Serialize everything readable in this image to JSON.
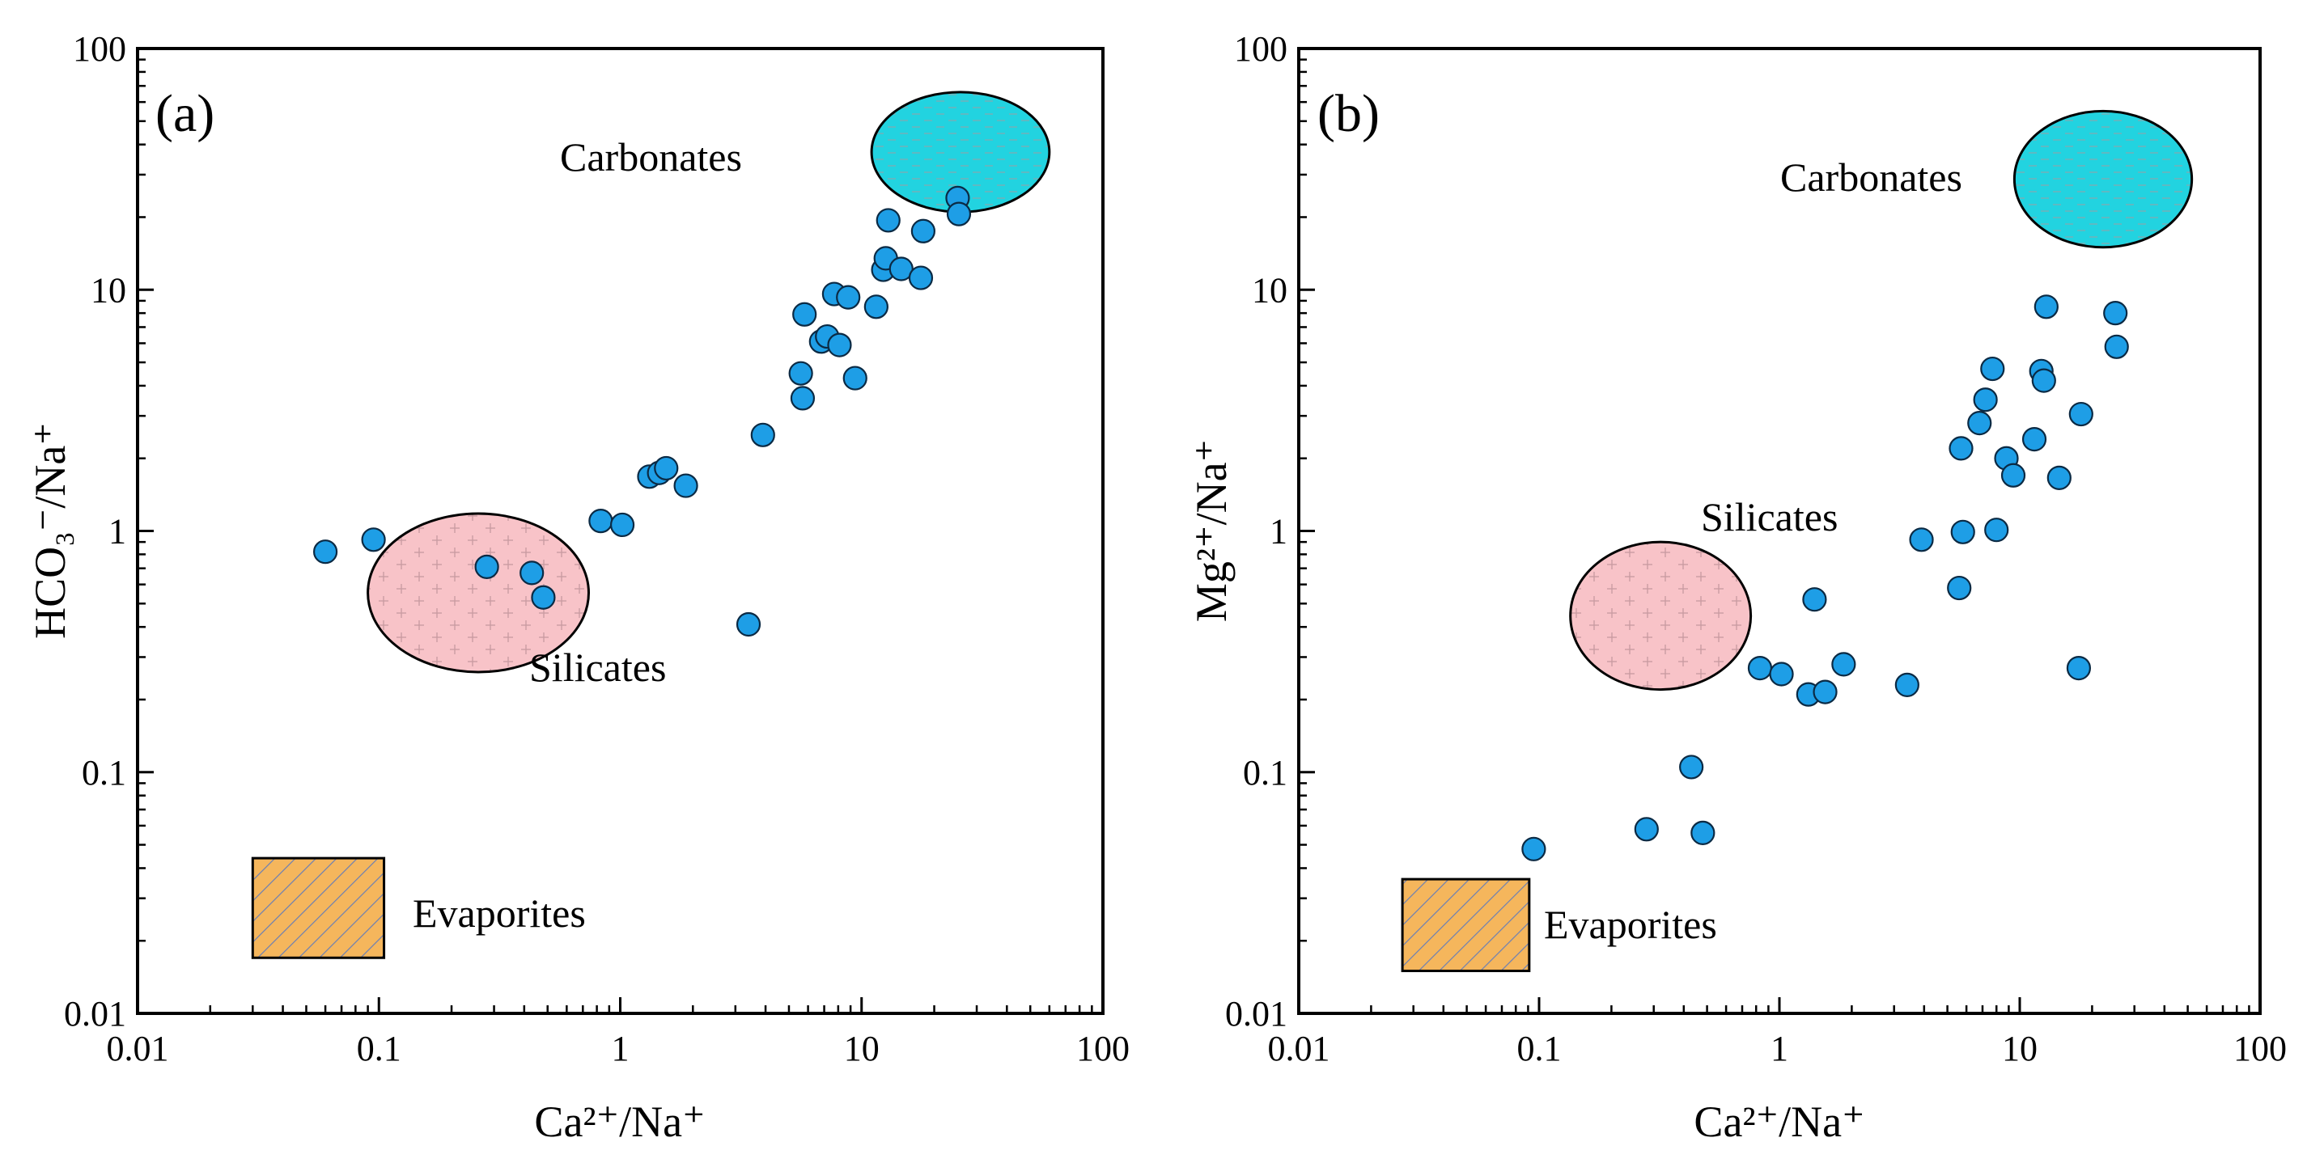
{
  "colors": {
    "point_fill": "#1e9ee6",
    "point_stroke": "#0b2a44",
    "carbonates_fill": "#22d3e0",
    "silicates_fill": "#f8c3c8",
    "evaporites_fill": "#f5b65c",
    "evaporites_hatch": "#6a7fb4"
  },
  "chart_data": [
    {
      "type": "scatter",
      "panel": "(a)",
      "xlabel": "Ca²⁺/Na⁺",
      "ylabel": "HCO₃⁻/Na⁺",
      "xscale": "log",
      "yscale": "log",
      "xlim": [
        0.01,
        100
      ],
      "ylim": [
        0.01,
        100
      ],
      "xticks": [
        "0.01",
        "0.1",
        "1",
        "10",
        "100"
      ],
      "yticks": [
        "0.01",
        "0.1",
        "1",
        "10",
        "100"
      ],
      "regions": [
        {
          "name": "Carbonates",
          "label": "Carbonates",
          "shape": "ellipse",
          "x_range": [
            11,
            60
          ],
          "y_range": [
            21,
            66
          ]
        },
        {
          "name": "Silicates",
          "label": "Silicates",
          "shape": "ellipse",
          "x_range": [
            0.09,
            0.74
          ],
          "y_range": [
            0.26,
            1.18
          ]
        },
        {
          "name": "Evaporites",
          "label": "Evaporites",
          "shape": "rect",
          "x_range": [
            0.03,
            0.105
          ],
          "y_range": [
            0.017,
            0.044
          ]
        }
      ],
      "points": [
        {
          "x": 0.06,
          "y": 0.82
        },
        {
          "x": 0.095,
          "y": 0.92
        },
        {
          "x": 0.28,
          "y": 0.71
        },
        {
          "x": 0.43,
          "y": 0.67
        },
        {
          "x": 0.48,
          "y": 0.53
        },
        {
          "x": 0.83,
          "y": 1.1
        },
        {
          "x": 1.02,
          "y": 1.06
        },
        {
          "x": 1.32,
          "y": 1.68
        },
        {
          "x": 1.45,
          "y": 1.74
        },
        {
          "x": 1.55,
          "y": 1.82
        },
        {
          "x": 1.87,
          "y": 1.54
        },
        {
          "x": 3.4,
          "y": 0.41
        },
        {
          "x": 3.9,
          "y": 2.5
        },
        {
          "x": 5.6,
          "y": 4.5
        },
        {
          "x": 5.7,
          "y": 3.55
        },
        {
          "x": 5.8,
          "y": 7.9
        },
        {
          "x": 6.8,
          "y": 6.1
        },
        {
          "x": 7.2,
          "y": 6.4
        },
        {
          "x": 7.7,
          "y": 9.6
        },
        {
          "x": 8.1,
          "y": 5.9
        },
        {
          "x": 8.8,
          "y": 9.3
        },
        {
          "x": 9.4,
          "y": 4.3
        },
        {
          "x": 11.5,
          "y": 8.5
        },
        {
          "x": 12.3,
          "y": 12.1
        },
        {
          "x": 12.6,
          "y": 13.5
        },
        {
          "x": 12.9,
          "y": 19.4
        },
        {
          "x": 14.6,
          "y": 12.2
        },
        {
          "x": 17.6,
          "y": 11.2
        },
        {
          "x": 18.0,
          "y": 17.5
        },
        {
          "x": 25.0,
          "y": 24.0
        },
        {
          "x": 25.3,
          "y": 20.6
        }
      ]
    },
    {
      "type": "scatter",
      "panel": "(b)",
      "xlabel": "Ca²⁺/Na⁺",
      "ylabel": "Mg²⁺/Na⁺",
      "xscale": "log",
      "yscale": "log",
      "xlim": [
        0.01,
        100
      ],
      "ylim": [
        0.01,
        100
      ],
      "xticks": [
        "0.01",
        "0.1",
        "1",
        "10",
        "100"
      ],
      "yticks": [
        "0.01",
        "0.1",
        "1",
        "10",
        "100"
      ],
      "regions": [
        {
          "name": "Carbonates",
          "label": "Carbonates",
          "shape": "ellipse",
          "x_range": [
            9.5,
            52
          ],
          "y_range": [
            15,
            55
          ]
        },
        {
          "name": "Silicates",
          "label": "Silicates",
          "shape": "ellipse",
          "x_range": [
            0.135,
            0.76
          ],
          "y_range": [
            0.22,
            0.9
          ]
        },
        {
          "name": "Evaporites",
          "label": "Evaporites",
          "shape": "rect",
          "x_range": [
            0.027,
            0.091
          ],
          "y_range": [
            0.015,
            0.036
          ]
        }
      ],
      "points": [
        {
          "x": 0.095,
          "y": 0.048
        },
        {
          "x": 0.28,
          "y": 0.058
        },
        {
          "x": 0.43,
          "y": 0.105
        },
        {
          "x": 0.48,
          "y": 0.056
        },
        {
          "x": 0.83,
          "y": 0.27
        },
        {
          "x": 1.02,
          "y": 0.255
        },
        {
          "x": 1.32,
          "y": 0.21
        },
        {
          "x": 1.4,
          "y": 0.52
        },
        {
          "x": 1.55,
          "y": 0.215
        },
        {
          "x": 1.85,
          "y": 0.28
        },
        {
          "x": 3.4,
          "y": 0.23
        },
        {
          "x": 3.9,
          "y": 0.92
        },
        {
          "x": 5.6,
          "y": 0.58
        },
        {
          "x": 5.7,
          "y": 2.2
        },
        {
          "x": 5.8,
          "y": 0.99
        },
        {
          "x": 6.8,
          "y": 2.8
        },
        {
          "x": 7.2,
          "y": 3.5
        },
        {
          "x": 7.7,
          "y": 4.7
        },
        {
          "x": 8.0,
          "y": 1.01
        },
        {
          "x": 8.8,
          "y": 2.0
        },
        {
          "x": 9.4,
          "y": 1.7
        },
        {
          "x": 11.5,
          "y": 2.4
        },
        {
          "x": 12.3,
          "y": 4.6
        },
        {
          "x": 12.6,
          "y": 4.2
        },
        {
          "x": 12.9,
          "y": 8.5
        },
        {
          "x": 14.6,
          "y": 1.66
        },
        {
          "x": 17.6,
          "y": 0.27
        },
        {
          "x": 18.0,
          "y": 3.05
        },
        {
          "x": 25.0,
          "y": 8.0
        },
        {
          "x": 25.3,
          "y": 5.8
        }
      ]
    }
  ]
}
